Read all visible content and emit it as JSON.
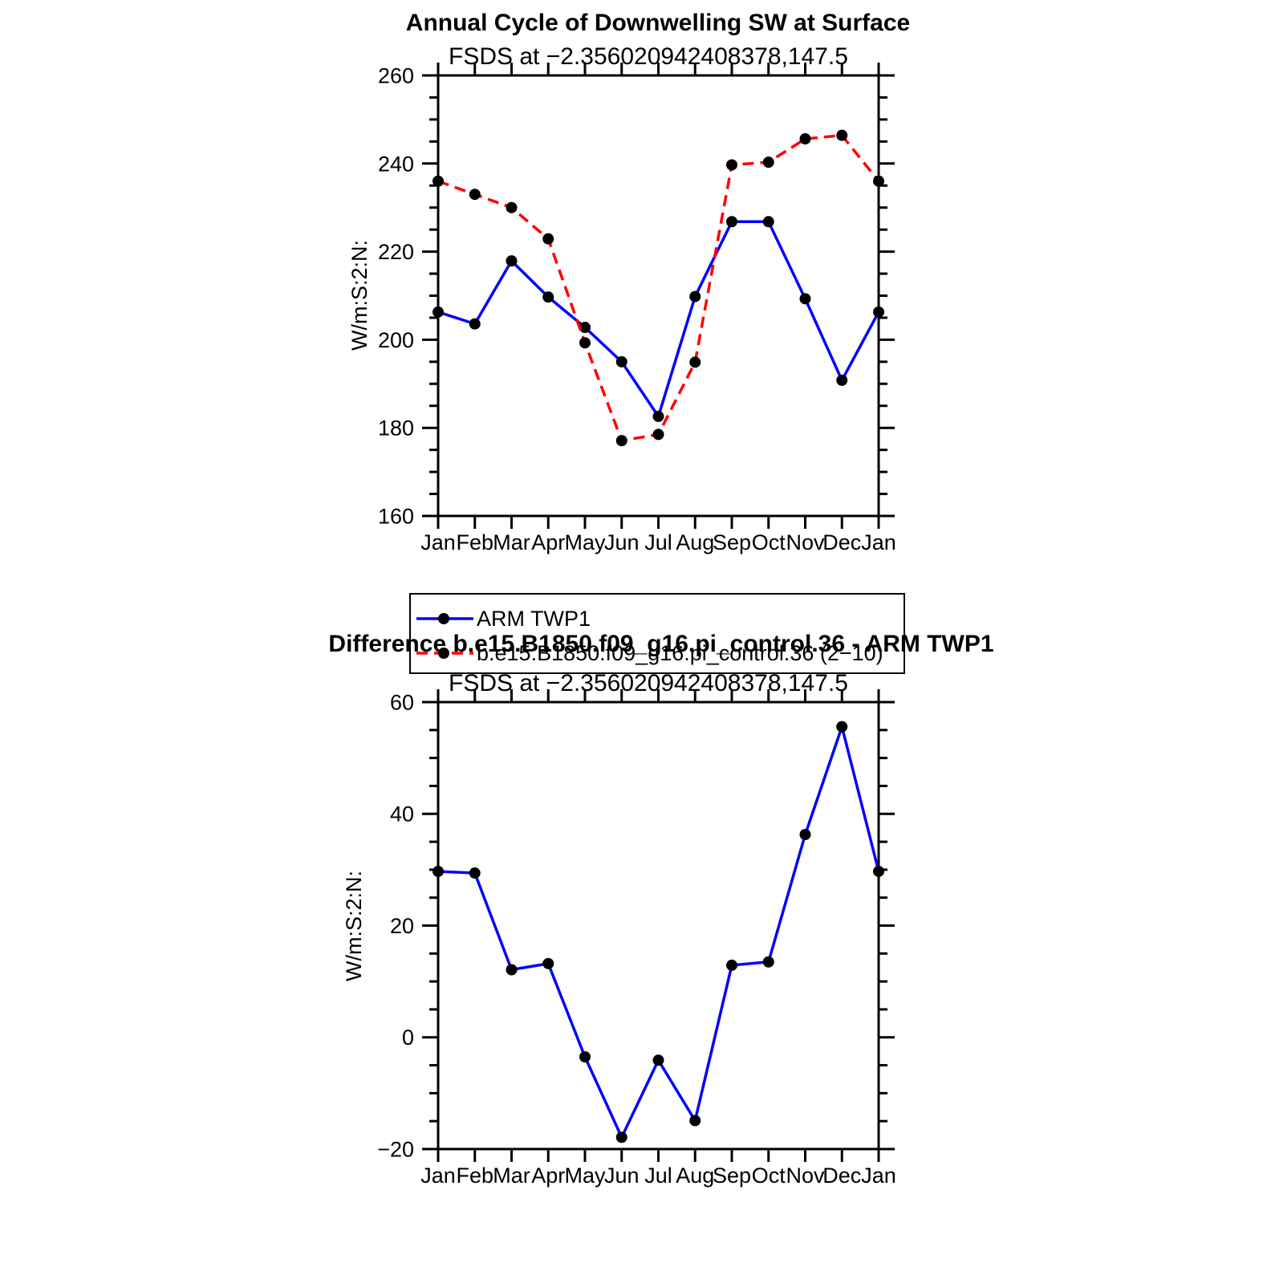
{
  "page": {
    "background": "#ffffff",
    "frame_color": "#000000"
  },
  "chart_data": [
    {
      "type": "line",
      "title": "Annual Cycle of Downwelling SW at Surface",
      "subtitle": "FSDS at −2.356020942408378,147.5",
      "ylabel": "W/m:S:2:N:",
      "xlabel": "",
      "categories": [
        "Jan",
        "Feb",
        "Mar",
        "Apr",
        "May",
        "Jun",
        "Jul",
        "Aug",
        "Sep",
        "Oct",
        "Nov",
        "Dec",
        "Jan"
      ],
      "ylim": [
        160,
        260
      ],
      "ytick_major": 20,
      "ytick_minor": 5,
      "grid": false,
      "legend_position": "below",
      "series": [
        {
          "name": "ARM TWP1",
          "color": "#0000ff",
          "line_style": "solid",
          "marker": "circle",
          "marker_color": "#000000",
          "values": [
            206.3,
            203.6,
            217.9,
            209.7,
            202.8,
            195.0,
            182.6,
            209.8,
            226.8,
            226.8,
            209.3,
            190.8,
            206.3
          ]
        },
        {
          "name": "b.e15.B1850.f09_g16.pi_control.36 (2−10)",
          "color": "#ff0000",
          "line_style": "dashed",
          "marker": "circle",
          "marker_color": "#000000",
          "values": [
            236.0,
            233.0,
            230.0,
            222.9,
            199.3,
            177.1,
            178.5,
            194.9,
            239.7,
            240.3,
            245.6,
            246.4,
            236.0
          ]
        }
      ]
    },
    {
      "type": "line",
      "title": "Difference b.e15.B1850.f09_g16.pi_control.36 - ARM TWP1",
      "subtitle": "FSDS at −2.356020942408378,147.5",
      "ylabel": "W/m:S:2:N:",
      "xlabel": "",
      "categories": [
        "Jan",
        "Feb",
        "Mar",
        "Apr",
        "May",
        "Jun",
        "Jul",
        "Aug",
        "Sep",
        "Oct",
        "Nov",
        "Dec",
        "Jan"
      ],
      "ylim": [
        -20,
        60
      ],
      "ytick_major": 20,
      "ytick_minor": 5,
      "grid": false,
      "legend_position": "none",
      "series": [
        {
          "name": "b.e15.B1850.f09_g16.pi_control.36 - ARM TWP1",
          "color": "#0000ff",
          "line_style": "solid",
          "marker": "circle",
          "marker_color": "#000000",
          "values": [
            29.7,
            29.4,
            12.1,
            13.2,
            -3.5,
            -17.9,
            -4.1,
            -14.9,
            12.9,
            13.5,
            36.3,
            55.6,
            29.7
          ]
        }
      ]
    }
  ]
}
